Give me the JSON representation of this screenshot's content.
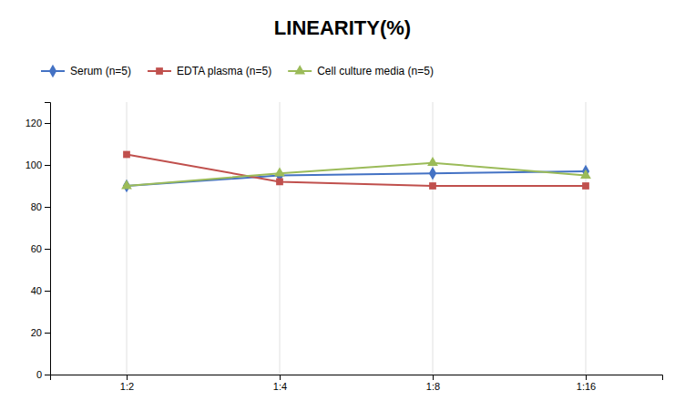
{
  "chart_data": {
    "type": "line",
    "title": "LINEARITY(%)",
    "categories": [
      "1:2",
      "1:4",
      "1:8",
      "1:16"
    ],
    "series": [
      {
        "name": "Serum (n=5)",
        "color": "#4472C4",
        "marker": "diamond",
        "values": [
          90,
          95,
          96,
          97
        ]
      },
      {
        "name": "EDTA plasma (n=5)",
        "color": "#C0504D",
        "marker": "square",
        "values": [
          105,
          92,
          90,
          90
        ]
      },
      {
        "name": "Cell culture media (n=5)",
        "color": "#9BBB59",
        "marker": "triangle-up",
        "values": [
          90,
          96,
          101,
          95
        ]
      }
    ],
    "ylim": [
      0,
      130
    ],
    "yticks": [
      0,
      20,
      40,
      60,
      80,
      100,
      120
    ],
    "grid": "x",
    "legend": "top-left"
  }
}
